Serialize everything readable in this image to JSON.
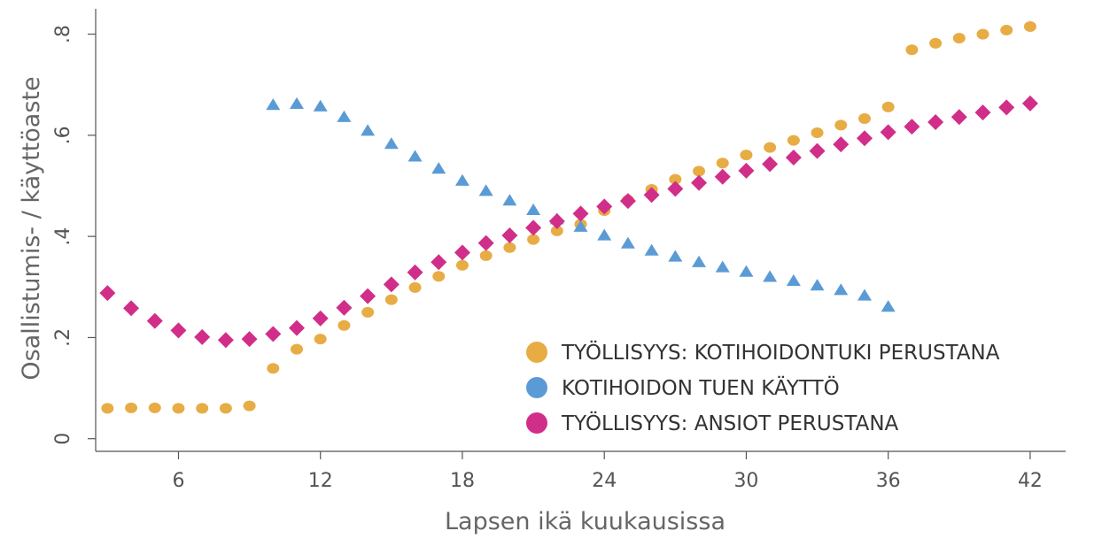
{
  "chart_data": {
    "type": "scatter",
    "title": "",
    "xlabel": "Lapsen ikä kuukausissa",
    "ylabel": "Osallistumis- / käyttöaste",
    "xlim": [
      2.5,
      43.5
    ],
    "ylim": [
      -0.025,
      0.85
    ],
    "xticks": [
      6,
      12,
      18,
      24,
      30,
      36,
      42
    ],
    "xtick_labels": [
      "6",
      "12",
      "18",
      "24",
      "30",
      "36",
      "42"
    ],
    "yticks": [
      0,
      0.2,
      0.4,
      0.6,
      0.8
    ],
    "ytick_labels": [
      "0",
      ".2",
      ".4",
      ".6",
      ".8"
    ],
    "grid": false,
    "legend_position": "bottom-right",
    "series": [
      {
        "name": "TYÖLLISYYS: KOTIHOIDONTUKI PERUSTANA",
        "color": "#E8AC45",
        "marker": "circle",
        "x": [
          3,
          4,
          5,
          6,
          7,
          8,
          9,
          10,
          11,
          12,
          13,
          14,
          15,
          16,
          17,
          18,
          19,
          20,
          21,
          22,
          23,
          24,
          25,
          26,
          27,
          28,
          29,
          30,
          31,
          32,
          33,
          34,
          35,
          36,
          37,
          38,
          39,
          40,
          41,
          42
        ],
        "y": [
          0.06,
          0.061,
          0.061,
          0.06,
          0.06,
          0.06,
          0.065,
          0.139,
          0.177,
          0.197,
          0.224,
          0.25,
          0.275,
          0.299,
          0.321,
          0.343,
          0.362,
          0.378,
          0.394,
          0.411,
          0.424,
          0.451,
          0.472,
          0.493,
          0.513,
          0.529,
          0.545,
          0.561,
          0.576,
          0.59,
          0.605,
          0.62,
          0.633,
          0.656,
          0.769,
          0.782,
          0.792,
          0.8,
          0.808,
          0.815
        ]
      },
      {
        "name": "KOTIHOIDON TUEN KÄYTTÖ",
        "color": "#5B9BD5",
        "marker": "triangle",
        "x": [
          10,
          11,
          12,
          13,
          14,
          15,
          16,
          17,
          18,
          19,
          20,
          21,
          22,
          23,
          24,
          25,
          26,
          27,
          28,
          29,
          30,
          31,
          32,
          33,
          34,
          35,
          36
        ],
        "y": [
          0.66,
          0.662,
          0.657,
          0.636,
          0.609,
          0.583,
          0.558,
          0.534,
          0.51,
          0.49,
          0.471,
          0.452,
          0.434,
          0.419,
          0.402,
          0.386,
          0.372,
          0.36,
          0.349,
          0.339,
          0.33,
          0.32,
          0.312,
          0.303,
          0.294,
          0.283,
          0.261
        ]
      },
      {
        "name": "TYÖLLISYYS: ANSIOT PERUSTANA",
        "color": "#D12E89",
        "marker": "diamond",
        "x": [
          3,
          4,
          5,
          6,
          7,
          8,
          9,
          10,
          11,
          12,
          13,
          14,
          15,
          16,
          17,
          18,
          19,
          20,
          21,
          22,
          23,
          24,
          25,
          26,
          27,
          28,
          29,
          30,
          31,
          32,
          33,
          34,
          35,
          36,
          37,
          38,
          39,
          40,
          41,
          42
        ],
        "y": [
          0.288,
          0.258,
          0.233,
          0.214,
          0.201,
          0.195,
          0.197,
          0.207,
          0.219,
          0.238,
          0.259,
          0.282,
          0.305,
          0.329,
          0.349,
          0.368,
          0.387,
          0.402,
          0.417,
          0.43,
          0.445,
          0.459,
          0.47,
          0.482,
          0.494,
          0.506,
          0.518,
          0.53,
          0.543,
          0.556,
          0.569,
          0.582,
          0.594,
          0.606,
          0.617,
          0.626,
          0.636,
          0.645,
          0.655,
          0.663
        ]
      }
    ]
  }
}
